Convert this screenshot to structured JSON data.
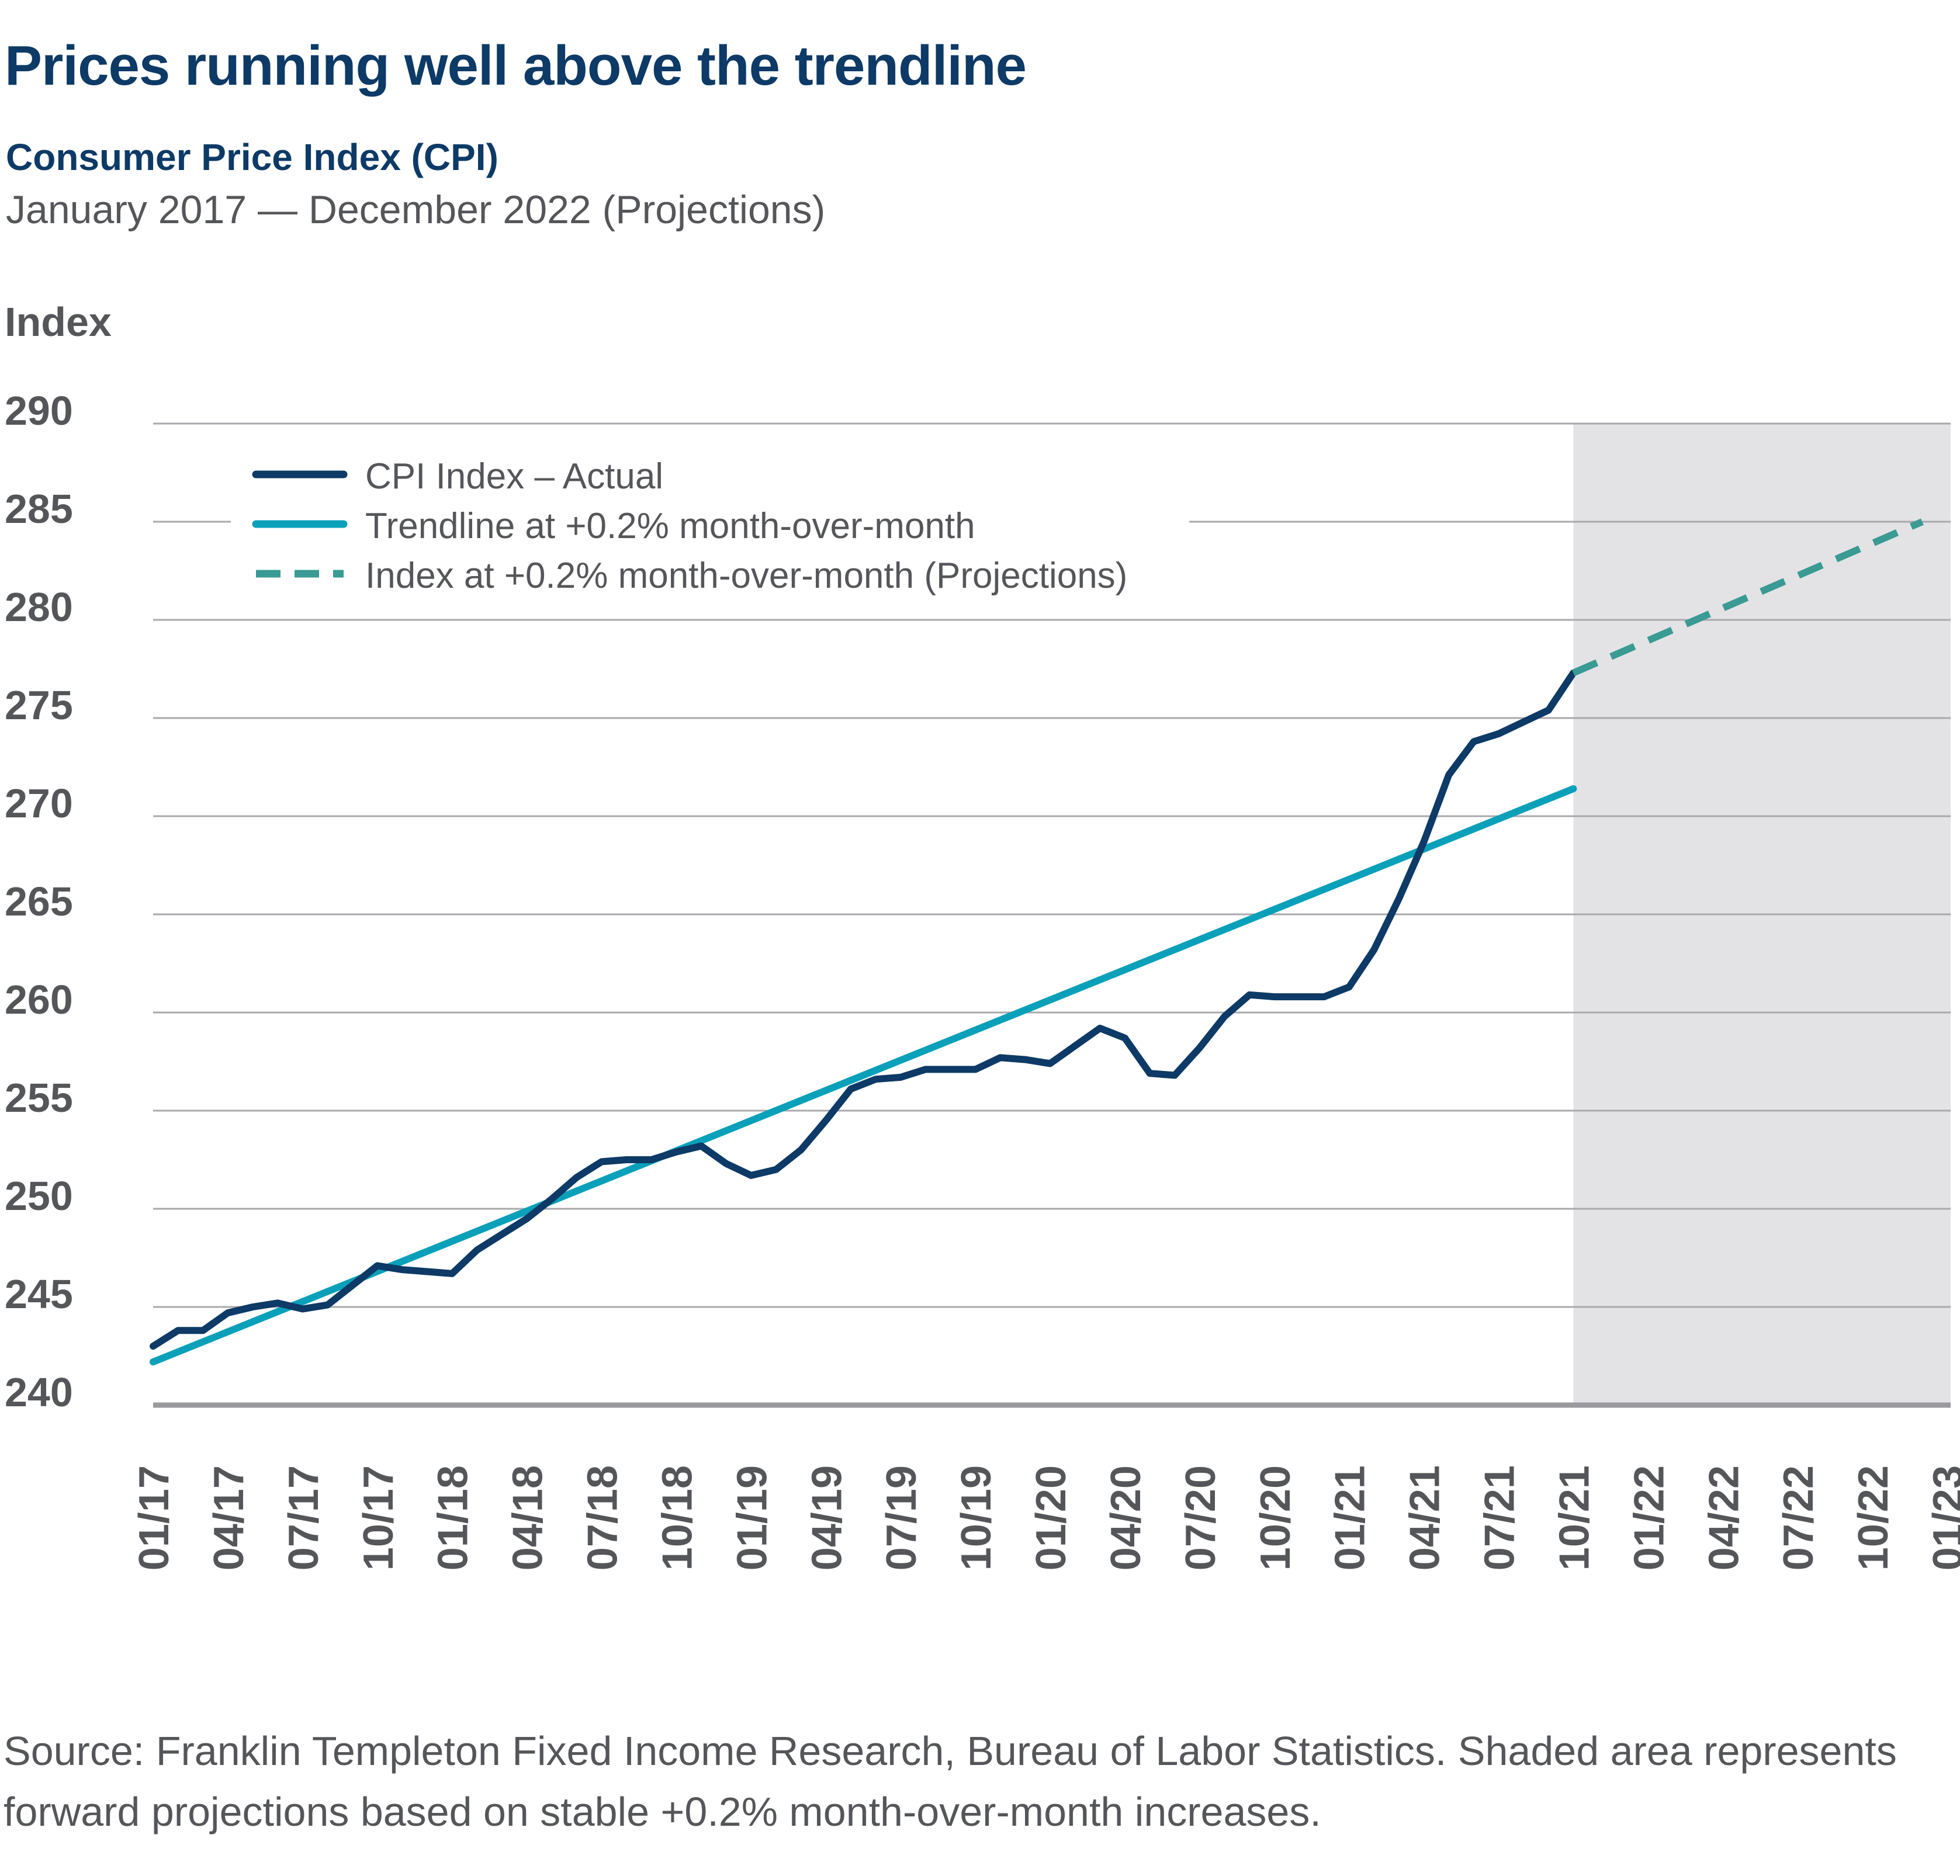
{
  "title": "Prices running well above the trendline",
  "subtitle": "Consumer Price Index (CPI)",
  "date_range": "January 2017 — December 2022 (Projections)",
  "source": "Source: Franklin Templeton Fixed Income Research, Bureau of Labor Statistics. Shaded area represents forward projections based on stable +0.2% month-over-month increases.",
  "colors": {
    "actual": "#0d3a66",
    "trend": "#0aa0ba",
    "projection": "#3a9a94",
    "shade": "#e3e3e5",
    "grid": "#a9a9ad",
    "text": "#555659"
  },
  "chart_data": {
    "type": "line",
    "ylabel": "Index",
    "ylim": [
      240,
      290
    ],
    "yticks": [
      290,
      285,
      280,
      275,
      270,
      265,
      260,
      255,
      250,
      245,
      240
    ],
    "x_axis": "months since Jan 2017",
    "xlim": [
      0,
      72
    ],
    "xticks": [
      {
        "label": "01/17",
        "month": 0
      },
      {
        "label": "04/17",
        "month": 3
      },
      {
        "label": "07/17",
        "month": 6
      },
      {
        "label": "10/17",
        "month": 9
      },
      {
        "label": "01/18",
        "month": 12
      },
      {
        "label": "04/18",
        "month": 15
      },
      {
        "label": "07/18",
        "month": 18
      },
      {
        "label": "10/18",
        "month": 21
      },
      {
        "label": "01/19",
        "month": 24
      },
      {
        "label": "04/19",
        "month": 27
      },
      {
        "label": "07/19",
        "month": 30
      },
      {
        "label": "10/19",
        "month": 33
      },
      {
        "label": "01/20",
        "month": 36
      },
      {
        "label": "04/20",
        "month": 39
      },
      {
        "label": "07/20",
        "month": 42
      },
      {
        "label": "10/20",
        "month": 45
      },
      {
        "label": "01/21",
        "month": 48
      },
      {
        "label": "04/21",
        "month": 51
      },
      {
        "label": "07/21",
        "month": 54
      },
      {
        "label": "10/21",
        "month": 57
      },
      {
        "label": "01/22",
        "month": 60
      },
      {
        "label": "04/22",
        "month": 63
      },
      {
        "label": "07/22",
        "month": 66
      },
      {
        "label": "10/22",
        "month": 69
      },
      {
        "label": "01/23",
        "month": 72
      }
    ],
    "projection_shade": {
      "from_month": 57,
      "to_month": 72
    },
    "series": [
      {
        "name": "CPI Index – Actual",
        "style": "solid",
        "x": [
          0,
          1,
          2,
          3,
          4,
          5,
          6,
          7,
          8,
          9,
          10,
          11,
          12,
          13,
          14,
          15,
          16,
          17,
          18,
          19,
          20,
          21,
          22,
          23,
          24,
          25,
          26,
          27,
          28,
          29,
          30,
          31,
          32,
          33,
          34,
          35,
          36,
          37,
          38,
          39,
          40,
          41,
          42,
          43,
          44,
          45,
          46,
          47,
          48,
          49,
          50,
          51,
          52,
          53,
          54,
          55,
          56,
          57
        ],
        "values": [
          243.0,
          243.8,
          243.8,
          244.7,
          245.0,
          245.2,
          244.9,
          245.1,
          246.1,
          247.1,
          246.9,
          246.8,
          246.7,
          247.9,
          248.7,
          249.5,
          250.5,
          251.6,
          252.4,
          252.5,
          252.5,
          252.9,
          253.2,
          252.3,
          251.7,
          252.0,
          253.0,
          254.5,
          256.1,
          256.6,
          256.7,
          257.1,
          257.1,
          257.1,
          257.7,
          257.6,
          257.4,
          258.3,
          259.2,
          258.7,
          256.9,
          256.8,
          258.2,
          259.8,
          260.9,
          260.8,
          260.8,
          260.8,
          261.3,
          263.2,
          265.8,
          268.7,
          272.1,
          273.8,
          274.2,
          274.8,
          275.4,
          277.3
        ]
      },
      {
        "name": "Trendline at +0.2% month-over-month",
        "style": "solid",
        "x": [
          0,
          57
        ],
        "values": [
          242.2,
          271.4
        ]
      },
      {
        "name": "Index at +0.2% month-over-month (Projections)",
        "style": "dashed",
        "x": [
          57,
          71
        ],
        "values": [
          277.3,
          285.0
        ]
      }
    ]
  }
}
